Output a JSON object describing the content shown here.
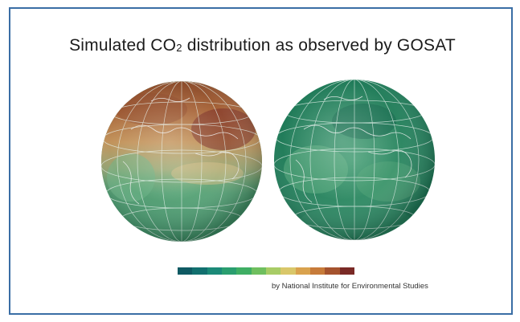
{
  "slide": {
    "title_main": "Simulated CO",
    "title_sub": "2",
    "title_rest": " distribution as observed by GOSAT",
    "credit": "by National Institute for Environmental Studies"
  },
  "globes": [
    {
      "name": "globe-high-co2",
      "palette": "brown-orange-green"
    },
    {
      "name": "globe-low-co2",
      "palette": "green"
    }
  ],
  "colorbar": {
    "colors": [
      "#0f5a63",
      "#12706f",
      "#1b8a78",
      "#2a9e6f",
      "#3fae64",
      "#6fbf5f",
      "#a8cc66",
      "#d9c76a",
      "#d9a24e",
      "#c77b3a",
      "#a5532e",
      "#7a2a26"
    ]
  }
}
